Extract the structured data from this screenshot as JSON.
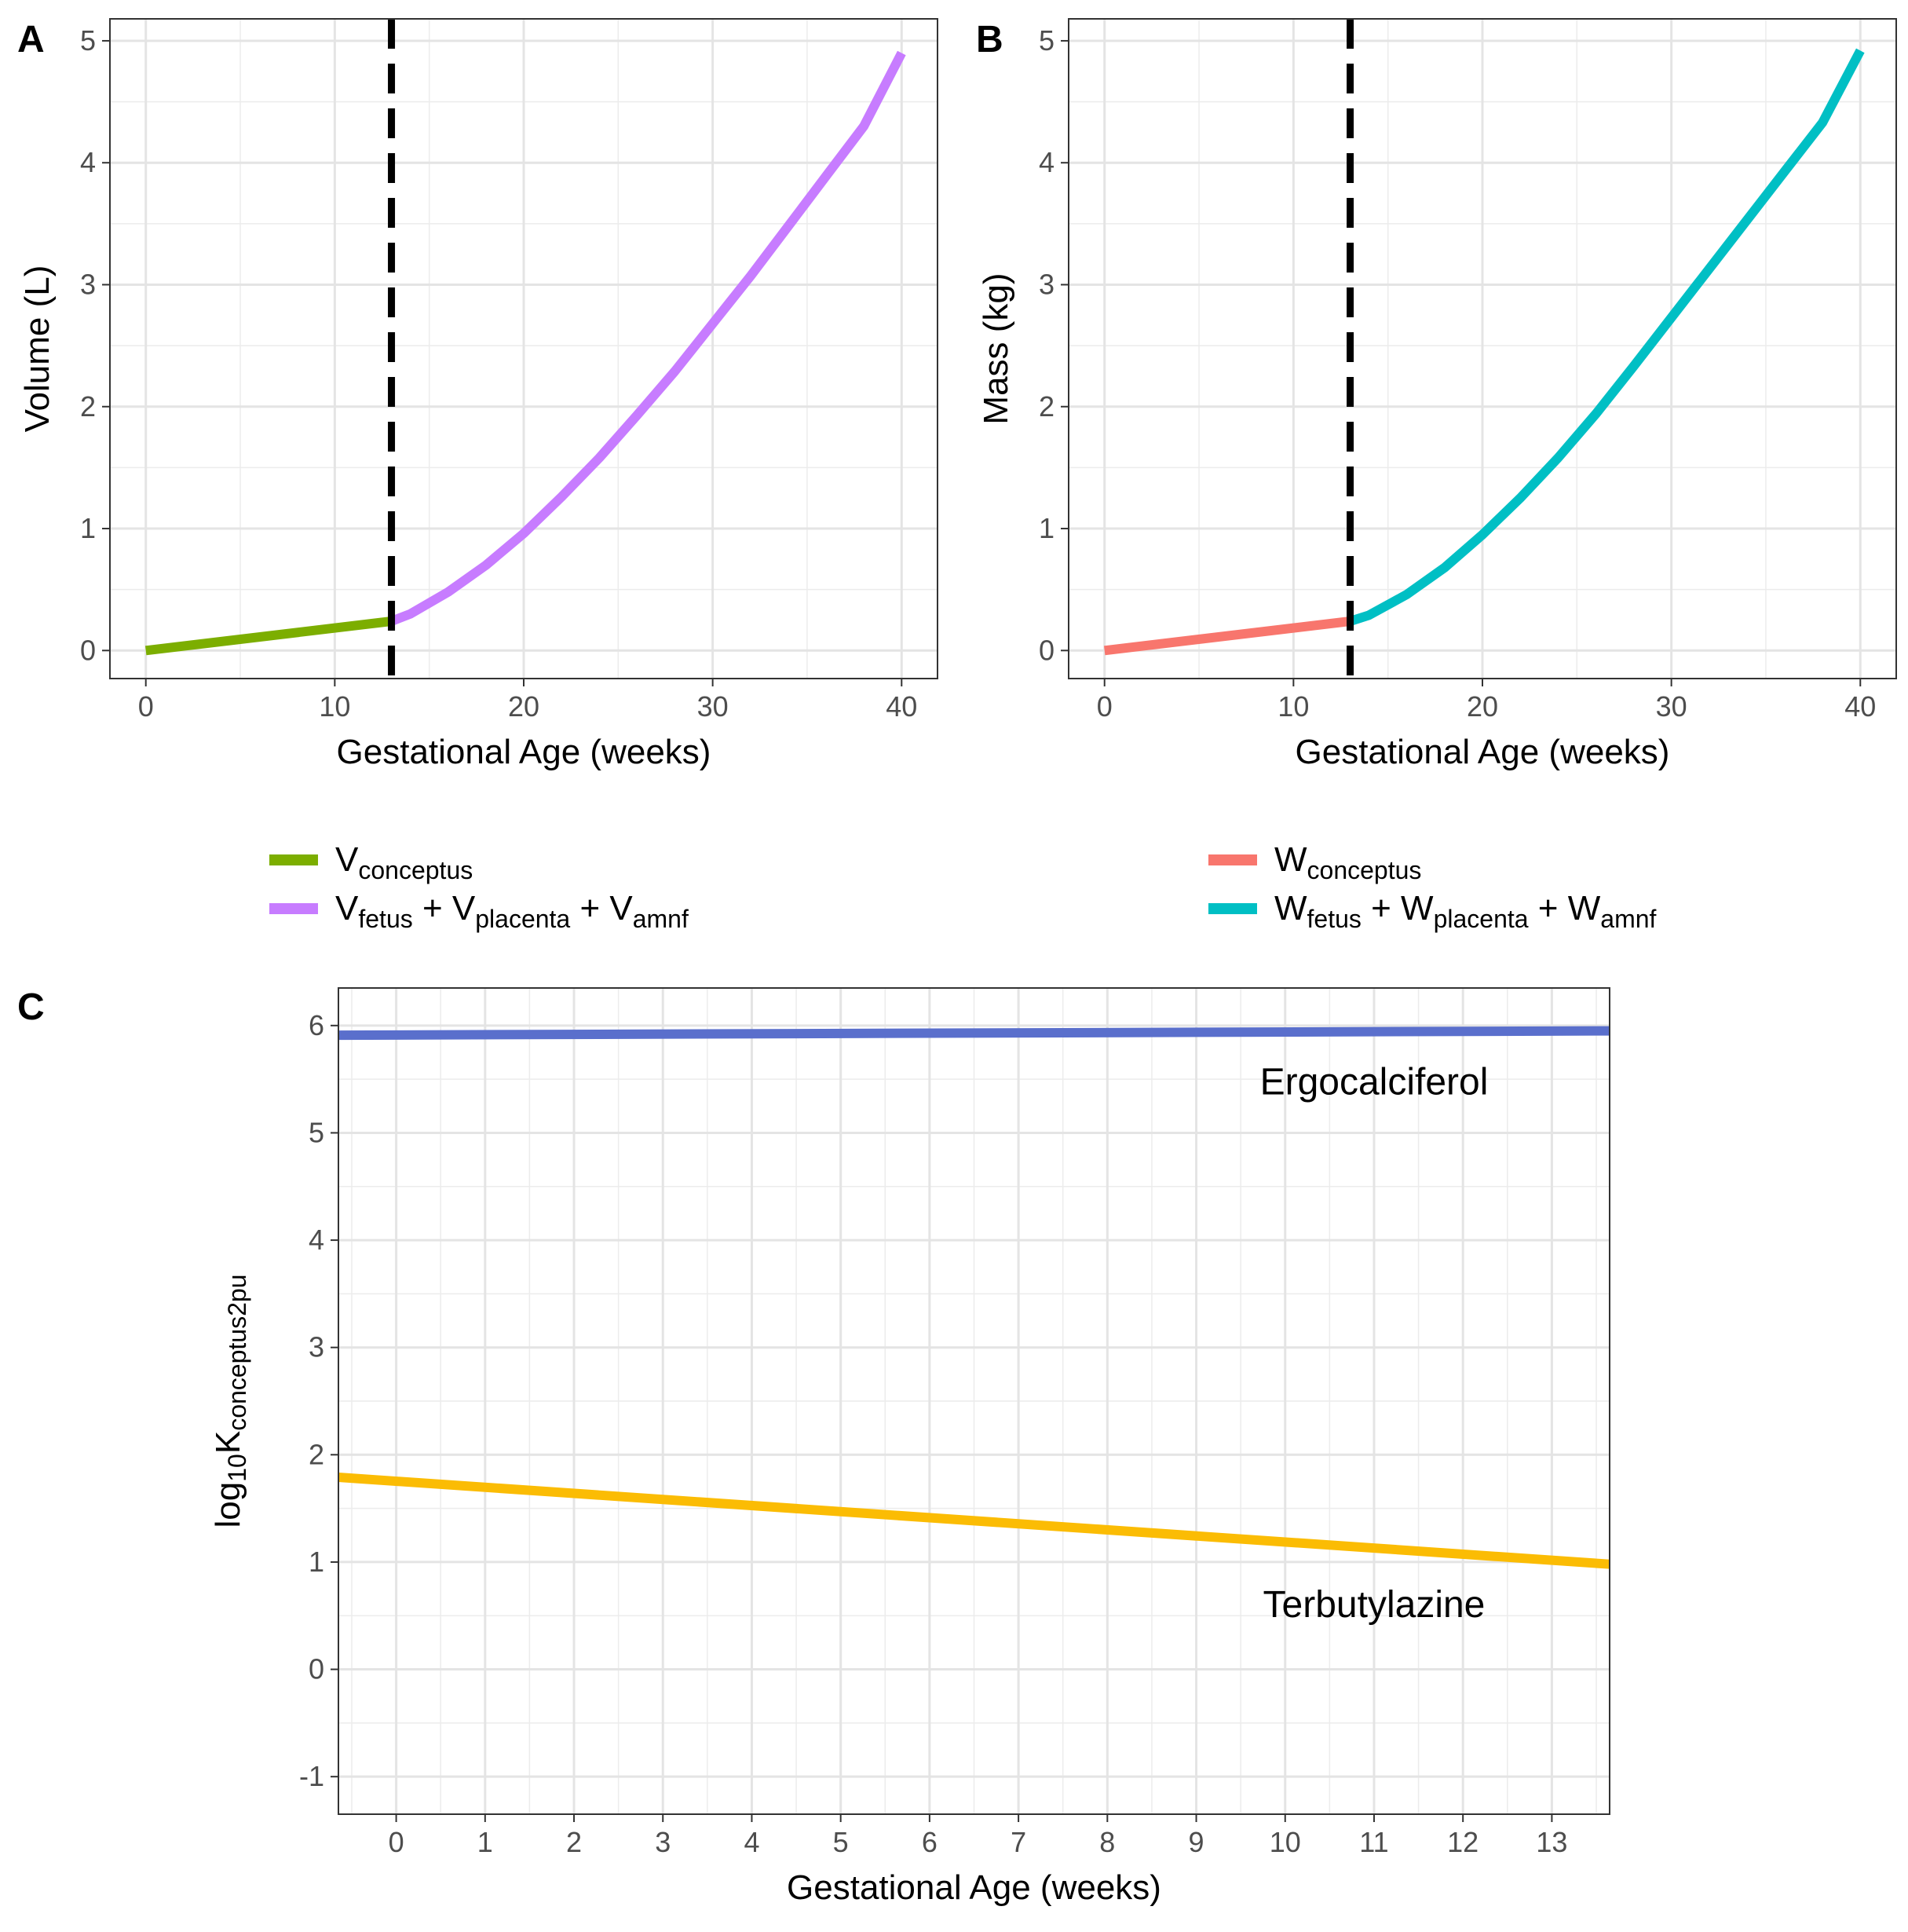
{
  "chart_data": [
    {
      "panel": "A",
      "type": "line",
      "xlabel": "Gestational Age (weeks)",
      "ylabel": "Volume (L)",
      "xlim": [
        -1.9,
        41.9
      ],
      "ylim": [
        -0.23,
        5.18
      ],
      "xticks": [
        0,
        10,
        20,
        30,
        40
      ],
      "yticks": [
        0,
        1,
        2,
        3,
        4,
        5
      ],
      "grid": true,
      "vline": {
        "x": 13,
        "style": "dashed",
        "color": "#000000"
      },
      "series": [
        {
          "name": "V",
          "subscript": "conceptus",
          "color": "#7CAE00",
          "x": [
            0,
            13
          ],
          "y": [
            0,
            0.24
          ]
        },
        {
          "name": "V",
          "subscript": "fetus",
          "color": "#C77CFF",
          "x": [
            13,
            14,
            16,
            18,
            20,
            22,
            24,
            26,
            28,
            30,
            32,
            34,
            36,
            38,
            40
          ],
          "y": [
            0.24,
            0.3,
            0.48,
            0.7,
            0.96,
            1.26,
            1.58,
            1.93,
            2.29,
            2.68,
            3.07,
            3.48,
            3.89,
            4.3,
            4.9
          ]
        }
      ],
      "legend": {
        "placement": "bottom",
        "entries": [
          {
            "parts": [
              {
                "t": "V"
              },
              {
                "t": "conceptus",
                "sub": true
              }
            ]
          },
          {
            "parts": [
              {
                "t": "V"
              },
              {
                "t": "fetus",
                "sub": true
              },
              {
                "t": " + V"
              },
              {
                "t": "placenta",
                "sub": true
              },
              {
                "t": " + V"
              },
              {
                "t": "amnf",
                "sub": true
              }
            ]
          }
        ]
      }
    },
    {
      "panel": "B",
      "type": "line",
      "xlabel": "Gestational Age (weeks)",
      "ylabel": "Mass (kg)",
      "xlim": [
        -1.9,
        41.9
      ],
      "ylim": [
        -0.23,
        5.18
      ],
      "xticks": [
        0,
        10,
        20,
        30,
        40
      ],
      "yticks": [
        0,
        1,
        2,
        3,
        4,
        5
      ],
      "grid": true,
      "vline": {
        "x": 13,
        "style": "dashed",
        "color": "#000000"
      },
      "series": [
        {
          "name": "W",
          "subscript": "conceptus",
          "color": "#F8766D",
          "x": [
            0,
            13
          ],
          "y": [
            0,
            0.24
          ]
        },
        {
          "name": "W",
          "subscript": "fetus",
          "color": "#00BFC4",
          "x": [
            13,
            14,
            16,
            18,
            20,
            22,
            24,
            26,
            28,
            30,
            32,
            34,
            36,
            38,
            40
          ],
          "y": [
            0.24,
            0.29,
            0.46,
            0.68,
            0.95,
            1.25,
            1.58,
            1.94,
            2.33,
            2.73,
            3.13,
            3.53,
            3.93,
            4.33,
            4.92
          ]
        }
      ],
      "legend": {
        "placement": "bottom",
        "entries": [
          {
            "parts": [
              {
                "t": "W"
              },
              {
                "t": "conceptus",
                "sub": true
              }
            ]
          },
          {
            "parts": [
              {
                "t": "W"
              },
              {
                "t": "fetus",
                "sub": true
              },
              {
                "t": " + W"
              },
              {
                "t": "placenta",
                "sub": true
              },
              {
                "t": " + W"
              },
              {
                "t": "amnf",
                "sub": true
              }
            ]
          }
        ]
      }
    },
    {
      "panel": "C",
      "type": "line",
      "xlabel": "Gestational Age (weeks)",
      "ylabel_parts": [
        {
          "t": "log"
        },
        {
          "t": "10",
          "sub": true
        },
        {
          "t": "K"
        },
        {
          "t": "conceptus2pu",
          "sub": true
        }
      ],
      "xlim": [
        -0.65,
        13.65
      ],
      "ylim": [
        -1.35,
        6.35
      ],
      "xticks": [
        0,
        1,
        2,
        3,
        4,
        5,
        6,
        7,
        8,
        9,
        10,
        11,
        12,
        13
      ],
      "yticks": [
        -1,
        0,
        1,
        2,
        3,
        4,
        5,
        6
      ],
      "grid": true,
      "series": [
        {
          "name": "Ergocalciferol",
          "color": "#5A6FCC",
          "x": [
            -0.65,
            13.65
          ],
          "y": [
            5.91,
            5.95
          ],
          "label": {
            "text": "Ergocalciferol",
            "x": 11,
            "y": 5.45
          }
        },
        {
          "name": "Terbutylazine",
          "color": "#FBBC04",
          "x": [
            -0.65,
            13.65
          ],
          "y": [
            1.79,
            0.98
          ],
          "label": {
            "text": "Terbutylazine",
            "x": 11,
            "y": 0.58
          }
        }
      ]
    }
  ]
}
